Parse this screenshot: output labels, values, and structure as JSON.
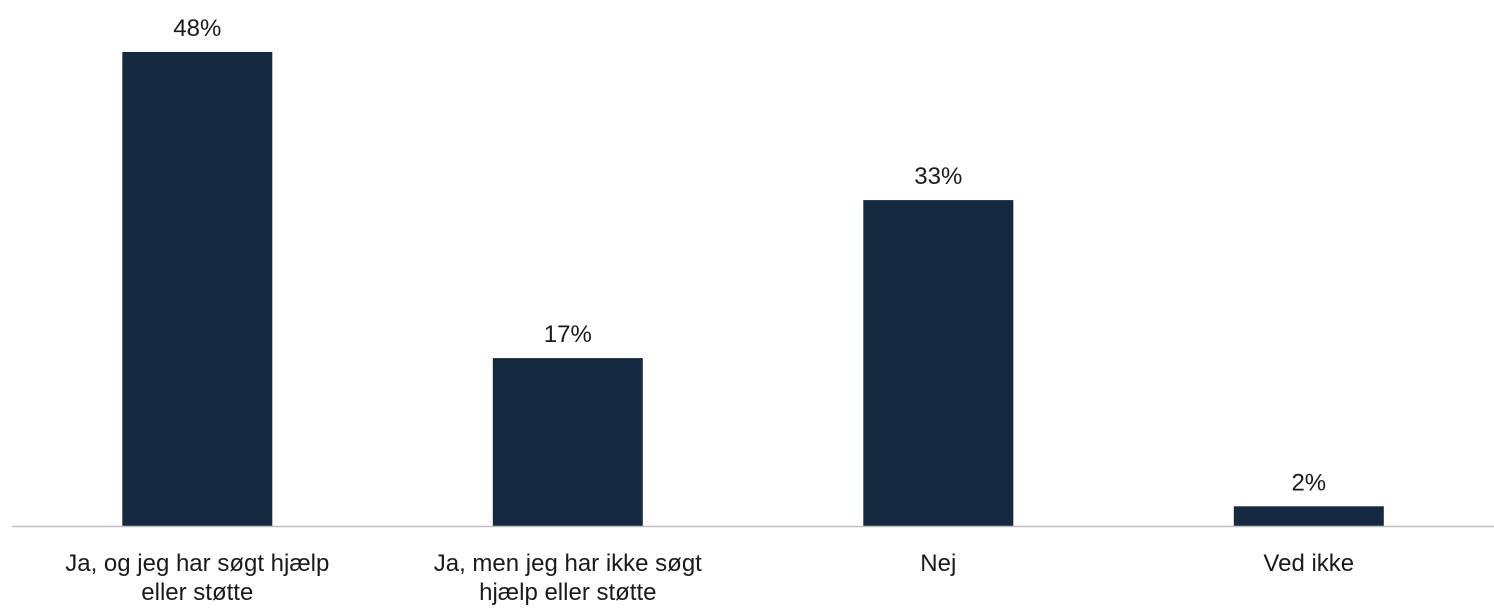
{
  "chart_data": {
    "type": "bar",
    "categories": [
      [
        "Ja, og jeg har søgt hjælp",
        "eller støtte"
      ],
      [
        "Ja, men jeg har ikke søgt",
        "hjælp eller støtte"
      ],
      [
        "Nej"
      ],
      [
        "Ved ikke"
      ]
    ],
    "values": [
      48,
      17,
      33,
      2
    ],
    "value_labels": [
      "48%",
      "17%",
      "33%",
      "2%"
    ],
    "unit": "%",
    "title": "",
    "xlabel": "",
    "ylabel": "",
    "ylim": [
      0,
      48
    ],
    "grid": false,
    "legend": "none",
    "colors": {
      "bar": "#152a40",
      "axis": "#bfbfbf",
      "text": "#1a1a1a"
    }
  }
}
